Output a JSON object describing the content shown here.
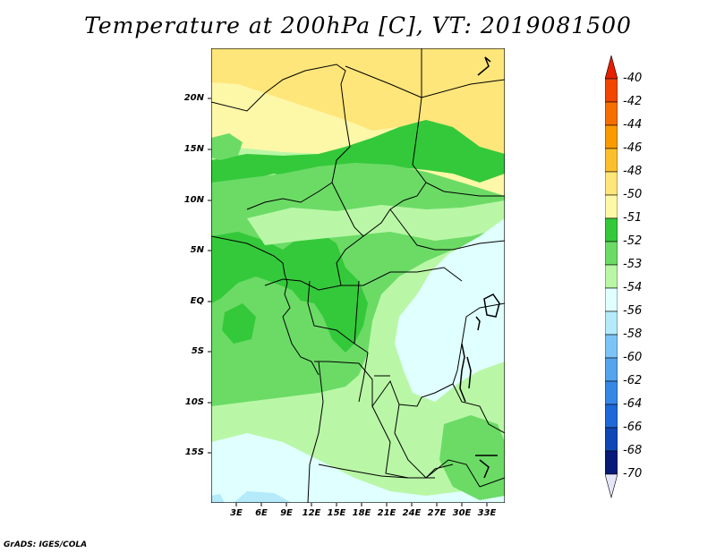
{
  "title": "Temperature at 200hPa [C], VT: 2019081500",
  "footer": "GrADS: IGES/COLA",
  "map": {
    "lat_labels": [
      "20N",
      "15N",
      "10N",
      "5N",
      "EQ",
      "5S",
      "10S",
      "15S"
    ],
    "lon_labels": [
      "3E",
      "6E",
      "9E",
      "12E",
      "15E",
      "18E",
      "21E",
      "24E",
      "27E",
      "30E",
      "33E"
    ],
    "lon_range": [
      0,
      35
    ],
    "lat_range": [
      -20,
      25
    ]
  },
  "colorbar": {
    "labels": [
      "-40",
      "-42",
      "-44",
      "-46",
      "-48",
      "-50",
      "-51",
      "-52",
      "-53",
      "-54",
      "-56",
      "-58",
      "-60",
      "-62",
      "-64",
      "-66",
      "-68",
      "-70"
    ],
    "colors": [
      "#e61f00",
      "#f24500",
      "#f76e00",
      "#f99a00",
      "#fcbf2c",
      "#ffe67a",
      "#fdf7a8",
      "#34c93a",
      "#6bdb66",
      "#b9f7a6",
      "#e0ffff",
      "#b4eafa",
      "#7dc4f6",
      "#54a4ee",
      "#3787e6",
      "#1f68d8",
      "#0f48b6",
      "#071a78",
      "#e6e6fa"
    ]
  }
}
